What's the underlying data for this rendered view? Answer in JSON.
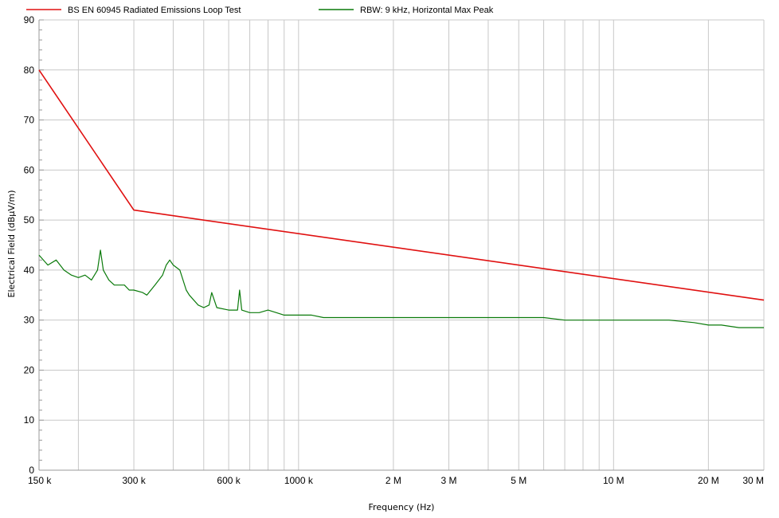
{
  "chart_data": {
    "type": "line",
    "xlabel": "Frequency (Hz)",
    "ylabel": "Electrical Field (dBµV/m)",
    "xscale": "log",
    "xlim": [
      150000,
      30000000
    ],
    "ylim": [
      0,
      90
    ],
    "grid": true,
    "legend_position": "top",
    "x_ticks": [
      {
        "value": 150000,
        "label": "150 k"
      },
      {
        "value": 300000,
        "label": "300 k"
      },
      {
        "value": 600000,
        "label": "600 k"
      },
      {
        "value": 1000000,
        "label": "1000 k"
      },
      {
        "value": 2000000,
        "label": "2 M"
      },
      {
        "value": 3000000,
        "label": "3 M"
      },
      {
        "value": 5000000,
        "label": "5 M"
      },
      {
        "value": 10000000,
        "label": "10 M"
      },
      {
        "value": 20000000,
        "label": "20 M"
      },
      {
        "value": 30000000,
        "label": "30 M"
      }
    ],
    "y_ticks": [
      0,
      10,
      20,
      30,
      40,
      50,
      60,
      70,
      80,
      90
    ],
    "series": [
      {
        "name": "BS EN 60945 Radiated Emissions Loop Test",
        "color": "#e01010",
        "x": [
          150000,
          300000,
          30000000
        ],
        "y": [
          80,
          52,
          34
        ]
      },
      {
        "name": "RBW: 9 kHz, Horizontal Max Peak",
        "color": "#0a7a0a",
        "x": [
          150000,
          160000,
          170000,
          180000,
          190000,
          200000,
          210000,
          220000,
          230000,
          235000,
          240000,
          250000,
          260000,
          270000,
          280000,
          290000,
          300000,
          320000,
          330000,
          350000,
          370000,
          380000,
          390000,
          400000,
          420000,
          440000,
          450000,
          480000,
          500000,
          520000,
          530000,
          550000,
          600000,
          640000,
          650000,
          660000,
          700000,
          750000,
          800000,
          850000,
          900000,
          1000000,
          1100000,
          1200000,
          1300000,
          1500000,
          1700000,
          2000000,
          2200000,
          2500000,
          3000000,
          3500000,
          4000000,
          5000000,
          6000000,
          7000000,
          8000000,
          10000000,
          12000000,
          15000000,
          18000000,
          20000000,
          22000000,
          25000000,
          30000000
        ],
        "y": [
          43,
          41,
          42,
          40,
          39,
          38.5,
          39,
          38,
          40,
          44,
          40,
          38,
          37,
          37,
          37,
          36,
          36,
          35.5,
          35,
          37,
          39,
          41,
          42,
          41,
          40,
          36,
          35,
          33,
          32.5,
          33,
          35.5,
          32.5,
          32,
          32,
          36,
          32,
          31.5,
          31.5,
          32,
          31.5,
          31,
          31,
          31,
          30.5,
          30.5,
          30.5,
          30.5,
          30.5,
          30.5,
          30.5,
          30.5,
          30.5,
          30.5,
          30.5,
          30.5,
          30,
          30,
          30,
          30,
          30,
          29.5,
          29,
          29,
          28.5,
          28.5
        ]
      }
    ]
  }
}
